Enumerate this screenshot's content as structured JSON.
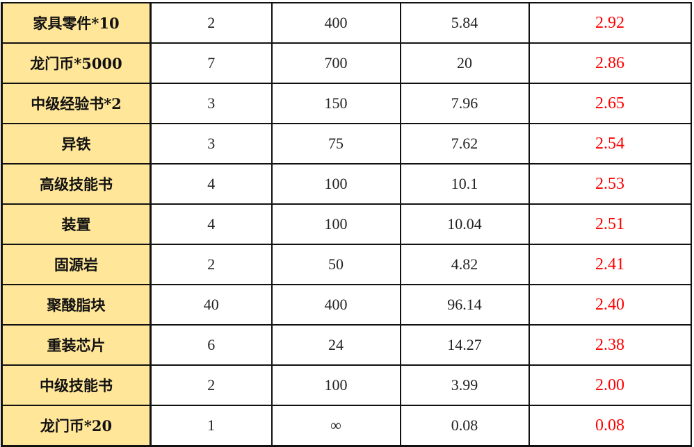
{
  "accent_colors": {
    "name_column_bg": "#ffe699",
    "ratio_text": "#ff0000"
  },
  "rows": [
    {
      "name": "家具零件*10",
      "c2": "2",
      "c3": "400",
      "c4": "5.84",
      "c5": "2.92"
    },
    {
      "name": "龙门币*5000",
      "c2": "7",
      "c3": "700",
      "c4": "20",
      "c5": "2.86"
    },
    {
      "name": "中级经验书*2",
      "c2": "3",
      "c3": "150",
      "c4": "7.96",
      "c5": "2.65"
    },
    {
      "name": "异铁",
      "c2": "3",
      "c3": "75",
      "c4": "7.62",
      "c5": "2.54"
    },
    {
      "name": "高级技能书",
      "c2": "4",
      "c3": "100",
      "c4": "10.1",
      "c5": "2.53"
    },
    {
      "name": "装置",
      "c2": "4",
      "c3": "100",
      "c4": "10.04",
      "c5": "2.51"
    },
    {
      "name": "固源岩",
      "c2": "2",
      "c3": "50",
      "c4": "4.82",
      "c5": "2.41"
    },
    {
      "name": "聚酸脂块",
      "c2": "40",
      "c3": "400",
      "c4": "96.14",
      "c5": "2.40"
    },
    {
      "name": "重装芯片",
      "c2": "6",
      "c3": "24",
      "c4": "14.27",
      "c5": "2.38"
    },
    {
      "name": "中级技能书",
      "c2": "2",
      "c3": "100",
      "c4": "3.99",
      "c5": "2.00"
    },
    {
      "name": "龙门币*20",
      "c2": "1",
      "c3": "∞",
      "c4": "0.08",
      "c5": "0.08"
    }
  ]
}
